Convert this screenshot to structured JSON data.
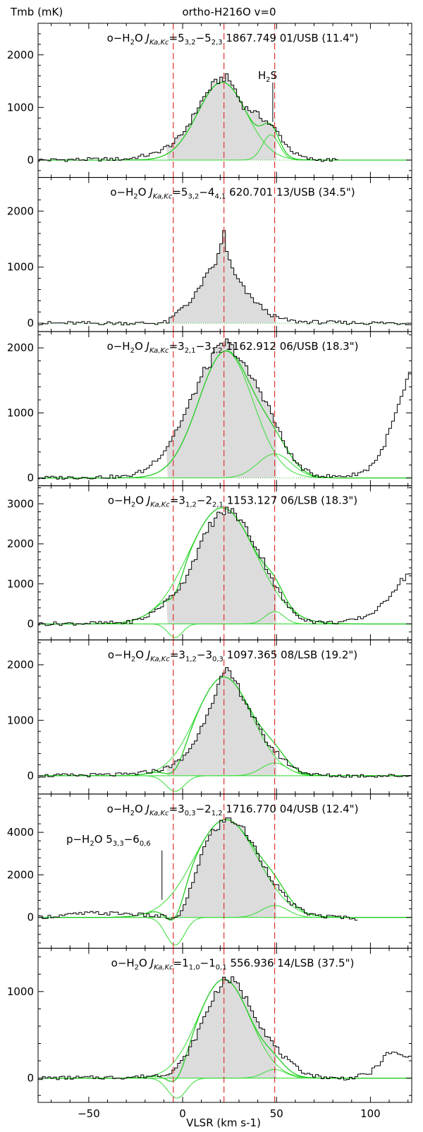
{
  "figure": {
    "title": "ortho-H216O v=0",
    "ylabel": "Tmb (mK)",
    "xlabel": "VLSR (km s-1)",
    "xlim": [
      -77,
      122
    ],
    "xticks": [
      -50,
      0,
      50,
      100
    ],
    "vlines": [
      -5,
      22,
      49
    ]
  },
  "chart_data": [
    {
      "type": "line",
      "name": "5_32-5_23",
      "title": "o-H2O J_Ka,Kc=5_3,2-5_2,3  1867.749 01/USB (11.4\")",
      "ylim": [
        -330,
        2600
      ],
      "yticks": [
        0,
        1000,
        2000
      ],
      "components": [
        {
          "amp": 1480,
          "center": 21,
          "sigma": 13
        },
        {
          "amp": 480,
          "center": 47,
          "sigma": 4.5
        }
      ],
      "spectrum": {
        "x": [
          -77,
          -30,
          -15,
          -5,
          0,
          5,
          10,
          15,
          20,
          23,
          27,
          30,
          33,
          37,
          40,
          44,
          47,
          50,
          55,
          60,
          65,
          70,
          82
        ],
        "y": [
          0,
          20,
          120,
          320,
          500,
          790,
          1110,
          1390,
          1540,
          1580,
          1420,
          1170,
          1000,
          940,
          860,
          760,
          660,
          560,
          300,
          120,
          40,
          10,
          0
        ]
      },
      "annotations": [
        {
          "text": "H2S",
          "x": 46
        }
      ]
    },
    {
      "type": "line",
      "name": "5_32-4_41",
      "title": "o-H2O J_Ka,Kc=5_3,2-4_4,1  620.701 13/USB (34.5\")",
      "ylim": [
        -150,
        2600
      ],
      "yticks": [
        0,
        1000,
        2000
      ],
      "components": [],
      "spectrum": {
        "x": [
          -77,
          -15,
          -8,
          -4,
          0,
          5,
          10,
          14,
          18,
          20,
          22,
          24,
          27,
          30,
          35,
          40,
          45,
          50,
          55,
          60,
          80,
          122
        ],
        "y": [
          0,
          0,
          20,
          150,
          300,
          400,
          700,
          900,
          1100,
          1300,
          1650,
          1200,
          900,
          750,
          500,
          350,
          200,
          100,
          60,
          30,
          10,
          0
        ]
      }
    },
    {
      "type": "line",
      "name": "3_21-3_12",
      "title": "o-H2O J_Ka,Kc=3_2,1-3_1,2  1162.912 06/USB (18.3\")",
      "ylim": [
        -120,
        2250
      ],
      "yticks": [
        0,
        1000,
        2000
      ],
      "components": [
        {
          "amp": 1950,
          "center": 23,
          "sigma": 14.5
        },
        {
          "amp": 370,
          "center": 49,
          "sigma": 9
        }
      ],
      "spectrum": {
        "x": [
          -77,
          -30,
          -20,
          -10,
          0,
          10,
          18,
          23,
          28,
          33,
          40,
          45,
          50,
          55,
          60,
          65,
          70,
          80,
          90,
          98,
          105,
          110,
          115,
          122
        ],
        "y": [
          0,
          20,
          120,
          400,
          900,
          1550,
          1950,
          2090,
          1950,
          1700,
          1400,
          1150,
          800,
          480,
          250,
          120,
          50,
          20,
          40,
          120,
          350,
          700,
          1100,
          1650
        ]
      }
    },
    {
      "type": "line",
      "name": "3_12-2_21",
      "title": "o-H2O J_Ka,Kc=3_1,2-2_2,1  1153.127 06/LSB (18.3\")",
      "ylim": [
        -400,
        3450
      ],
      "yticks": [
        0,
        1000,
        2000,
        3000
      ],
      "components": [
        {
          "amp": 2900,
          "center": 21,
          "sigma": 18
        },
        {
          "amp": 310,
          "center": 49,
          "sigma": 5
        },
        {
          "amp": -340,
          "center": -4,
          "sigma": 4
        }
      ],
      "spectrum": {
        "x": [
          -77,
          -30,
          -20,
          -10,
          0,
          8,
          15,
          20,
          25,
          30,
          35,
          40,
          45,
          50,
          55,
          60,
          65,
          70,
          80,
          90,
          98,
          105,
          110,
          115,
          122
        ],
        "y": [
          0,
          30,
          150,
          500,
          1000,
          1800,
          2500,
          2750,
          2850,
          2650,
          2300,
          1850,
          1400,
          900,
          500,
          250,
          120,
          50,
          30,
          80,
          200,
          400,
          700,
          1000,
          1350
        ]
      }
    },
    {
      "type": "line",
      "name": "3_12-3_03",
      "title": "o-H2O J_Ka,Kc=3_1,2-3_0,3  1097.365 08/LSB (19.2\")",
      "ylim": [
        -330,
        2450
      ],
      "yticks": [
        0,
        1000,
        2000
      ],
      "components": [
        {
          "amp": 1780,
          "center": 22,
          "sigma": 15
        },
        {
          "amp": 230,
          "center": 49,
          "sigma": 7
        },
        {
          "amp": -280,
          "center": -4,
          "sigma": 5
        }
      ],
      "spectrum": {
        "x": [
          -77,
          -30,
          -20,
          -10,
          0,
          8,
          15,
          20,
          23,
          27,
          32,
          37,
          42,
          47,
          52,
          57,
          62,
          67,
          72,
          80,
          90,
          122
        ],
        "y": [
          0,
          20,
          60,
          120,
          300,
          700,
          1300,
          1700,
          1880,
          1750,
          1450,
          1100,
          750,
          520,
          350,
          200,
          100,
          40,
          15,
          0,
          0,
          0
        ]
      }
    },
    {
      "type": "line",
      "name": "3_03-2_12",
      "title": "o-H2O J_Ka,Kc=3_0,3-2_1,2  1716.770 04/USB (12.4\")",
      "ylim": [
        -1450,
        5800
      ],
      "yticks": [
        0,
        2000,
        4000
      ],
      "components": [
        {
          "amp": 4600,
          "center": 23,
          "sigma": 17
        },
        {
          "amp": 560,
          "center": 49,
          "sigma": 7
        },
        {
          "amp": -1300,
          "center": -4,
          "sigma": 5
        }
      ],
      "spectrum": {
        "x": [
          -77,
          -50,
          -30,
          -20,
          -10,
          -5,
          0,
          5,
          10,
          15,
          20,
          25,
          30,
          35,
          40,
          45,
          50,
          55,
          60,
          65,
          70,
          80,
          90,
          92
        ],
        "y": [
          0,
          200,
          180,
          100,
          50,
          -100,
          300,
          1500,
          3000,
          3900,
          4400,
          4650,
          4400,
          3800,
          3000,
          2200,
          1500,
          900,
          500,
          250,
          100,
          20,
          0,
          -200
        ]
      },
      "annotations": [
        {
          "text": "p-H2O 5_3,3-6_0,6",
          "x": -11
        }
      ]
    },
    {
      "type": "line",
      "name": "1_10-1_01",
      "title": "o-H2O J_Ka,Kc=1_1,0-1_0,1  556.936 14/LSB (37.5\")",
      "ylim": [
        -280,
        1500
      ],
      "yticks": [
        0,
        1000
      ],
      "components": [
        {
          "amp": 1140,
          "center": 22,
          "sigma": 14
        },
        {
          "amp": 100,
          "center": 49,
          "sigma": 6
        },
        {
          "amp": -230,
          "center": -3,
          "sigma": 5
        }
      ],
      "spectrum": {
        "x": [
          -77,
          -30,
          -20,
          -10,
          -5,
          0,
          5,
          10,
          15,
          20,
          24,
          28,
          32,
          37,
          42,
          47,
          52,
          57,
          62,
          67,
          72,
          80,
          90,
          100,
          105,
          110,
          115,
          122
        ],
        "y": [
          0,
          10,
          20,
          40,
          90,
          200,
          380,
          620,
          870,
          1080,
          1150,
          1100,
          980,
          800,
          600,
          430,
          290,
          180,
          100,
          50,
          20,
          0,
          0,
          60,
          180,
          300,
          270,
          230
        ]
      }
    }
  ]
}
